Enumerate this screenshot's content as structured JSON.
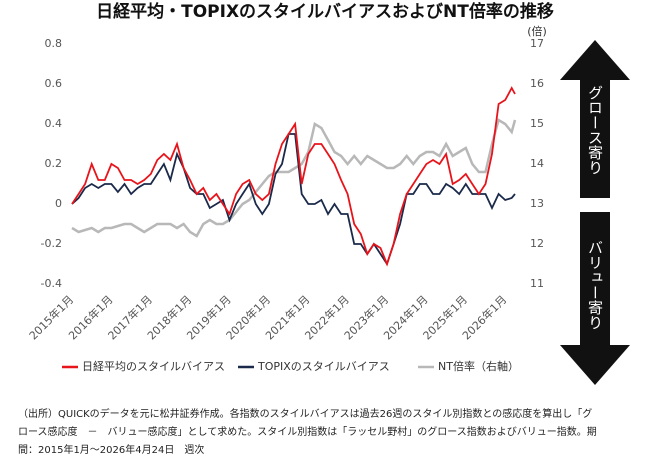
{
  "chart_data": {
    "type": "line",
    "title": "日経平均・TOPIXのスタイルバイアスおよびNT倍率の推移",
    "y2_label": "(倍)",
    "annotations": [
      "グロース寄り",
      "バリュー寄り"
    ],
    "notes": [
      "（出所）QUICKのデータを元に松井証券作成。各指数のスタイルバイアスは過去26週のスタイル別指数との感応度を算出し「グ",
      "ロース感応度　－　バリュー感応度」として求めた。スタイル別指数は「ラッセル野村」のグロース指数およびバリュー指数。期",
      "間：2015年1月～2026年4月24日　週次"
    ],
    "x": [
      "2015-01",
      "2015-03",
      "2015-05",
      "2015-07",
      "2015-09",
      "2015-11",
      "2016-01",
      "2016-03",
      "2016-05",
      "2016-07",
      "2016-09",
      "2016-11",
      "2017-01",
      "2017-03",
      "2017-05",
      "2017-07",
      "2017-09",
      "2017-11",
      "2018-01",
      "2018-03",
      "2018-05",
      "2018-07",
      "2018-09",
      "2018-11",
      "2019-01",
      "2019-03",
      "2019-05",
      "2019-07",
      "2019-09",
      "2019-11",
      "2020-01",
      "2020-03",
      "2020-05",
      "2020-07",
      "2020-09",
      "2020-11",
      "2021-01",
      "2021-03",
      "2021-05",
      "2021-07",
      "2021-09",
      "2021-11",
      "2022-01",
      "2022-03",
      "2022-05",
      "2022-07",
      "2022-09",
      "2022-11",
      "2023-01",
      "2023-03",
      "2023-05",
      "2023-07",
      "2023-09",
      "2023-11",
      "2024-01",
      "2024-03",
      "2024-05",
      "2024-07",
      "2024-09",
      "2024-11",
      "2025-01",
      "2025-03",
      "2025-05",
      "2025-07",
      "2025-09",
      "2025-11",
      "2026-01",
      "2026-03",
      "2026-04"
    ],
    "xlim": [
      "2015-01",
      "2026-04"
    ],
    "xticks": [
      {
        "value": "2015-01",
        "label": "2015年1月"
      },
      {
        "value": "2016-01",
        "label": "2016年1月"
      },
      {
        "value": "2017-01",
        "label": "2017年1月"
      },
      {
        "value": "2018-01",
        "label": "2018年1月"
      },
      {
        "value": "2019-01",
        "label": "2019年1月"
      },
      {
        "value": "2020-01",
        "label": "2020年1月"
      },
      {
        "value": "2021-01",
        "label": "2021年1月"
      },
      {
        "value": "2022-01",
        "label": "2022年1月"
      },
      {
        "value": "2023-01",
        "label": "2023年1月"
      },
      {
        "value": "2024-01",
        "label": "2024年1月"
      },
      {
        "value": "2025-01",
        "label": "2025年1月"
      },
      {
        "value": "2026-01",
        "label": "2026年1月"
      }
    ],
    "ylim": [
      -0.4,
      0.8
    ],
    "yticks": [
      0.8,
      0.6,
      0.4,
      0.2,
      0,
      -0.2,
      -0.4
    ],
    "y2lim": [
      11,
      17
    ],
    "y2ticks": [
      17,
      16,
      15,
      14,
      13,
      12,
      11
    ],
    "series": [
      {
        "name": "日経平均のスタイルバイアス",
        "color": "#e8141b",
        "values": [
          0.0,
          0.05,
          0.1,
          0.2,
          0.12,
          0.12,
          0.2,
          0.18,
          0.12,
          0.12,
          0.1,
          0.12,
          0.15,
          0.22,
          0.25,
          0.22,
          0.3,
          0.18,
          0.12,
          0.05,
          0.08,
          0.02,
          0.05,
          0.0,
          -0.05,
          0.05,
          0.1,
          0.12,
          0.05,
          0.02,
          0.05,
          0.2,
          0.3,
          0.35,
          0.4,
          0.1,
          0.25,
          0.3,
          0.3,
          0.25,
          0.2,
          0.12,
          0.05,
          -0.1,
          -0.15,
          -0.25,
          -0.2,
          -0.22,
          -0.3,
          -0.2,
          -0.05,
          0.05,
          0.1,
          0.15,
          0.2,
          0.22,
          0.2,
          0.25,
          0.1,
          0.12,
          0.15,
          0.1,
          0.05,
          0.1,
          0.25,
          0.5,
          0.52,
          0.58,
          0.55
        ]
      },
      {
        "name": "TOPIXのスタイルバイアス",
        "color": "#1b2a4a",
        "values": [
          0.0,
          0.03,
          0.08,
          0.1,
          0.08,
          0.1,
          0.1,
          0.06,
          0.1,
          0.05,
          0.08,
          0.1,
          0.1,
          0.15,
          0.2,
          0.12,
          0.25,
          0.18,
          0.08,
          0.05,
          0.05,
          -0.02,
          0.0,
          0.02,
          -0.08,
          0.0,
          0.05,
          0.1,
          0.0,
          -0.05,
          0.0,
          0.15,
          0.2,
          0.35,
          0.35,
          0.05,
          0.0,
          0.0,
          0.02,
          -0.05,
          0.0,
          -0.05,
          -0.05,
          -0.2,
          -0.2,
          -0.25,
          -0.2,
          -0.25,
          -0.3,
          -0.2,
          -0.1,
          0.05,
          0.05,
          0.1,
          0.1,
          0.05,
          0.05,
          0.1,
          0.08,
          0.05,
          0.1,
          0.05,
          0.05,
          0.05,
          -0.02,
          0.05,
          0.02,
          0.03,
          0.05
        ]
      },
      {
        "name": "NT倍率（右軸）",
        "color": "#b8b8b8",
        "axis": "y2",
        "values": [
          12.4,
          12.3,
          12.35,
          12.4,
          12.3,
          12.4,
          12.4,
          12.45,
          12.5,
          12.5,
          12.4,
          12.3,
          12.4,
          12.5,
          12.5,
          12.5,
          12.4,
          12.5,
          12.3,
          12.2,
          12.5,
          12.6,
          12.5,
          12.5,
          12.6,
          12.8,
          13.0,
          13.1,
          13.3,
          13.5,
          13.7,
          13.8,
          13.8,
          13.8,
          13.9,
          14.0,
          14.3,
          15.0,
          14.9,
          14.6,
          14.3,
          14.2,
          14.0,
          14.2,
          14.0,
          14.2,
          14.1,
          14.0,
          13.9,
          13.9,
          14.0,
          14.2,
          14.0,
          14.2,
          14.3,
          14.3,
          14.2,
          14.5,
          14.2,
          14.3,
          14.4,
          14.0,
          13.8,
          13.8,
          14.5,
          15.1,
          15.0,
          14.8,
          15.1
        ]
      }
    ]
  }
}
